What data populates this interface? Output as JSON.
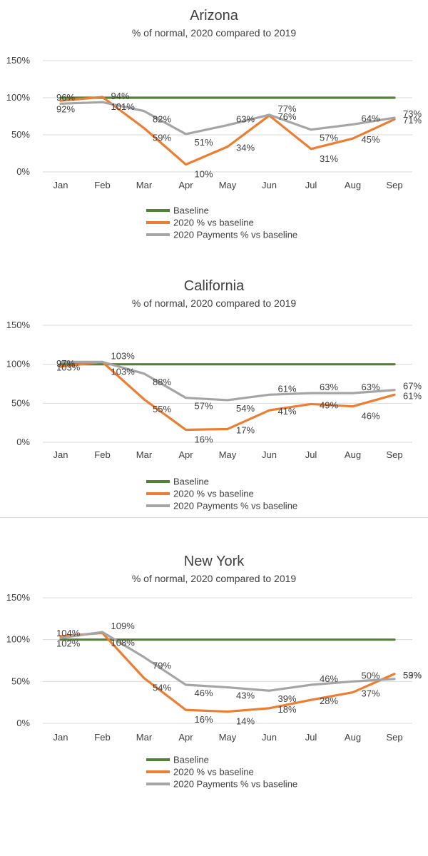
{
  "chart_data": [
    {
      "type": "line",
      "title": "Arizona",
      "subtitle": "% of normal, 2020 compared to 2019",
      "categories": [
        "Jan",
        "Feb",
        "Mar",
        "Apr",
        "May",
        "Jun",
        "Jul",
        "Aug",
        "Sep"
      ],
      "ylim": [
        0,
        150
      ],
      "yticks": [
        "0%",
        "50%",
        "100%",
        "150%"
      ],
      "series": [
        {
          "name": "Baseline",
          "color": "#548235",
          "values": [
            100,
            100,
            100,
            100,
            100,
            100,
            100,
            100,
            100
          ],
          "labels": false
        },
        {
          "name": "2020 % vs baseline",
          "color": "#ed7d31",
          "values": [
            96,
            101,
            59,
            10,
            34,
            76,
            31,
            45,
            71
          ],
          "labels": true
        },
        {
          "name": "2020 Payments % vs baseline",
          "color": "#a5a5a5",
          "values": [
            92,
            94,
            82,
            51,
            63,
            77,
            57,
            64,
            73
          ],
          "labels": true
        }
      ],
      "grid": true,
      "legend": "bottom"
    },
    {
      "type": "line",
      "title": "California",
      "subtitle": "% of normal, 2020 compared to 2019",
      "categories": [
        "Jan",
        "Feb",
        "Mar",
        "Apr",
        "May",
        "Jun",
        "Jul",
        "Aug",
        "Sep"
      ],
      "ylim": [
        0,
        150
      ],
      "yticks": [
        "0%",
        "50%",
        "100%",
        "150%"
      ],
      "series": [
        {
          "name": "Baseline",
          "color": "#548235",
          "values": [
            100,
            100,
            100,
            100,
            100,
            100,
            100,
            100,
            100
          ],
          "labels": false
        },
        {
          "name": "2020 % vs baseline",
          "color": "#ed7d31",
          "values": [
            97,
            103,
            55,
            16,
            17,
            41,
            49,
            46,
            61
          ],
          "labels": true
        },
        {
          "name": "2020 Payments % vs baseline",
          "color": "#a5a5a5",
          "values": [
            103,
            103,
            88,
            57,
            54,
            61,
            63,
            63,
            67
          ],
          "labels": true
        }
      ],
      "grid": true,
      "legend": "bottom"
    },
    {
      "type": "line",
      "title": "New York",
      "subtitle": "% of normal, 2020 compared to 2019",
      "categories": [
        "Jan",
        "Feb",
        "Mar",
        "Apr",
        "May",
        "Jun",
        "Jul",
        "Aug",
        "Sep"
      ],
      "ylim": [
        0,
        150
      ],
      "yticks": [
        "0%",
        "50%",
        "100%",
        "150%"
      ],
      "series": [
        {
          "name": "Baseline",
          "color": "#548235",
          "values": [
            100,
            100,
            100,
            100,
            100,
            100,
            100,
            100,
            100
          ],
          "labels": false
        },
        {
          "name": "2020 % vs baseline",
          "color": "#ed7d31",
          "values": [
            104,
            108,
            54,
            16,
            14,
            18,
            28,
            37,
            59
          ],
          "labels": true
        },
        {
          "name": "2020 Payments % vs baseline",
          "color": "#a5a5a5",
          "values": [
            102,
            109,
            79,
            46,
            43,
            39,
            46,
            50,
            53
          ],
          "labels": true
        }
      ],
      "grid": true,
      "legend": "bottom"
    }
  ]
}
